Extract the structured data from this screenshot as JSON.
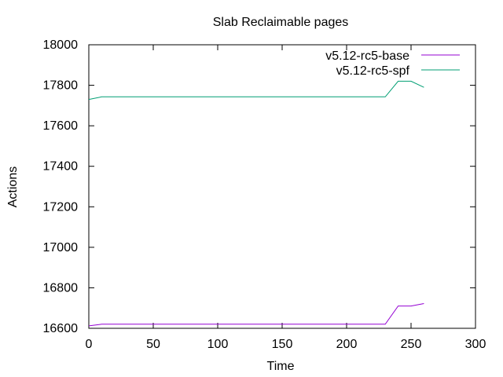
{
  "chart_data": {
    "type": "line",
    "title": "Slab Reclaimable pages",
    "xlabel": "Time",
    "ylabel": "Actions",
    "xlim": [
      0,
      300
    ],
    "ylim": [
      16600,
      18000
    ],
    "x_ticks": [
      0,
      50,
      100,
      150,
      200,
      250,
      300
    ],
    "y_ticks": [
      16600,
      16800,
      17000,
      17200,
      17400,
      17600,
      17800,
      18000
    ],
    "grid": false,
    "legend_position": "top-right",
    "series": [
      {
        "name": "v5.12-rc5-base",
        "color": "#9400d3",
        "points": [
          [
            0,
            16612
          ],
          [
            10,
            16620
          ],
          [
            20,
            16620
          ],
          [
            50,
            16620
          ],
          [
            100,
            16620
          ],
          [
            150,
            16620
          ],
          [
            200,
            16620
          ],
          [
            230,
            16620
          ],
          [
            240,
            16710
          ],
          [
            250,
            16710
          ],
          [
            260,
            16722
          ]
        ]
      },
      {
        "name": "v5.12-rc5-spf",
        "color": "#009e73",
        "points": [
          [
            0,
            17730
          ],
          [
            10,
            17743
          ],
          [
            20,
            17743
          ],
          [
            50,
            17743
          ],
          [
            100,
            17743
          ],
          [
            150,
            17743
          ],
          [
            200,
            17743
          ],
          [
            230,
            17743
          ],
          [
            240,
            17820
          ],
          [
            250,
            17820
          ],
          [
            260,
            17790
          ]
        ]
      }
    ]
  }
}
